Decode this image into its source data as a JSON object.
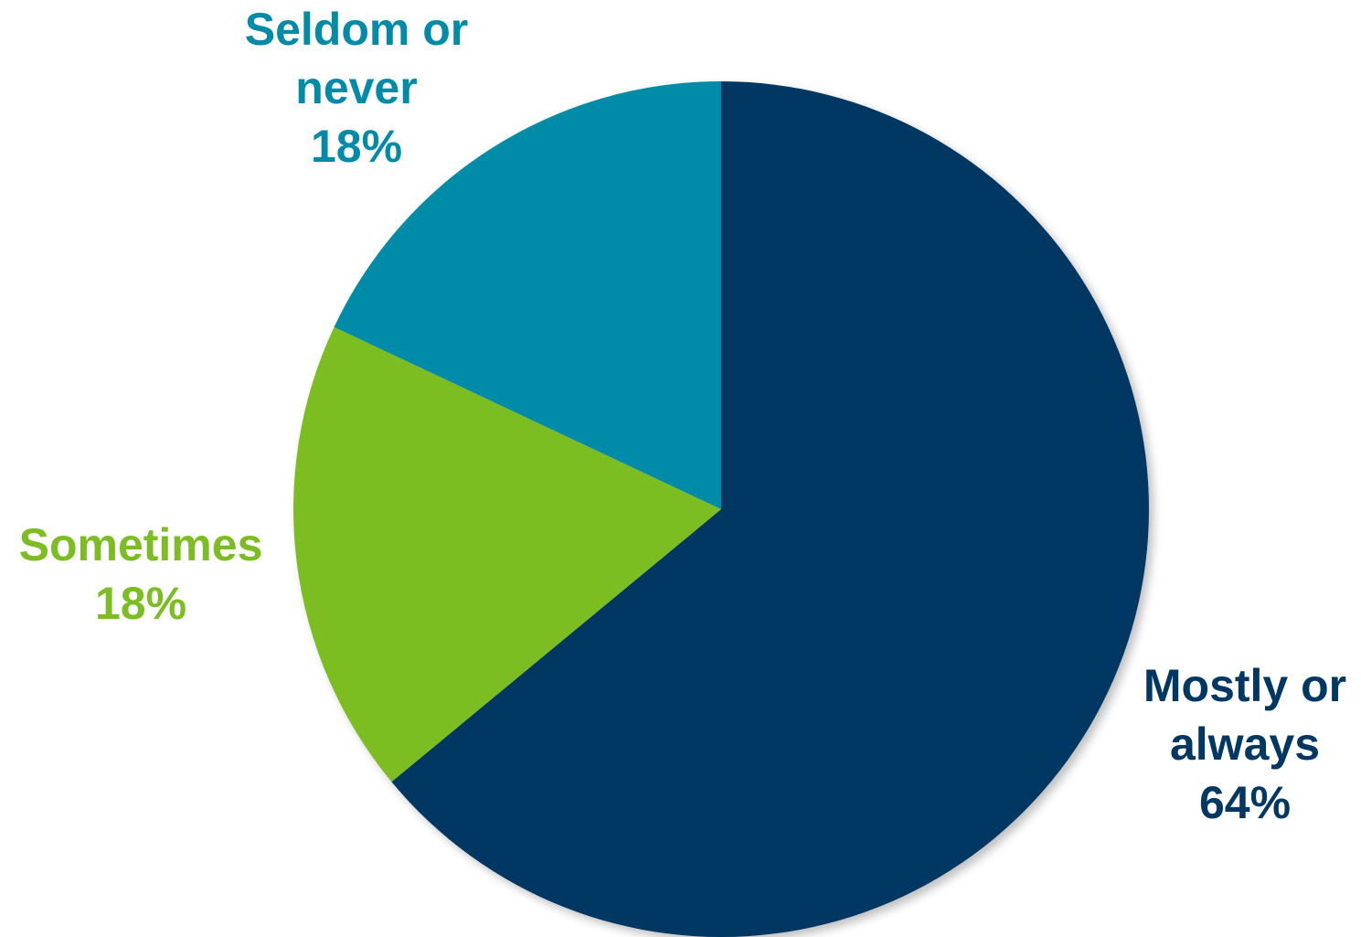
{
  "chart_data": {
    "type": "pie",
    "slices": [
      {
        "label_lines": [
          "Mostly or",
          "always"
        ],
        "percent_label": "64%",
        "value": 64,
        "color": "#003863"
      },
      {
        "label_lines": [
          "Sometimes"
        ],
        "percent_label": "18%",
        "value": 18,
        "color": "#7BBD22"
      },
      {
        "label_lines": [
          "Seldom or",
          "never"
        ],
        "percent_label": "18%",
        "value": 18,
        "color": "#028BA8"
      }
    ],
    "start": "12 o'clock",
    "direction": "clockwise",
    "legend": "none",
    "data_labels": "outside, colored by slice"
  }
}
